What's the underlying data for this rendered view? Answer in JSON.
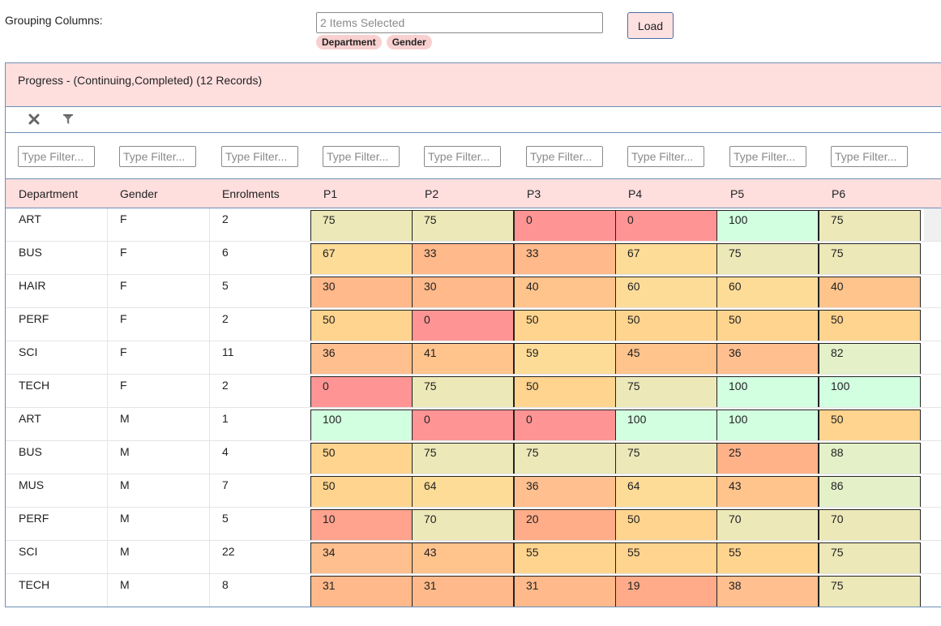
{
  "grouping": {
    "label": "Grouping Columns:",
    "selected_text": "2 Items Selected",
    "chips": [
      "Department",
      "Gender"
    ]
  },
  "load_button": "Load",
  "panel": {
    "title": "Progress - (Continuing,Completed) (12 Records)"
  },
  "toolbar": {
    "clear_icon": "x-icon",
    "filter_icon": "funnel-icon"
  },
  "filter_placeholder": "Type Filter...",
  "columns": [
    "Department",
    "Gender",
    "Enrolments",
    "P1",
    "P2",
    "P3",
    "P4",
    "P5",
    "P6"
  ],
  "rows": [
    {
      "department": "ART",
      "gender": "F",
      "enrolments": "2",
      "p": [
        "75",
        "75",
        "0",
        "0",
        "100",
        "75"
      ]
    },
    {
      "department": "BUS",
      "gender": "F",
      "enrolments": "6",
      "p": [
        "67",
        "33",
        "33",
        "67",
        "75",
        "75"
      ]
    },
    {
      "department": "HAIR",
      "gender": "F",
      "enrolments": "5",
      "p": [
        "30",
        "30",
        "40",
        "60",
        "60",
        "40"
      ]
    },
    {
      "department": "PERF",
      "gender": "F",
      "enrolments": "2",
      "p": [
        "50",
        "0",
        "50",
        "50",
        "50",
        "50"
      ]
    },
    {
      "department": "SCI",
      "gender": "F",
      "enrolments": "11",
      "p": [
        "36",
        "41",
        "59",
        "45",
        "36",
        "82"
      ]
    },
    {
      "department": "TECH",
      "gender": "F",
      "enrolments": "2",
      "p": [
        "0",
        "75",
        "50",
        "75",
        "100",
        "100"
      ]
    },
    {
      "department": "ART",
      "gender": "M",
      "enrolments": "1",
      "p": [
        "100",
        "0",
        "0",
        "100",
        "100",
        "50"
      ]
    },
    {
      "department": "BUS",
      "gender": "M",
      "enrolments": "4",
      "p": [
        "50",
        "75",
        "75",
        "75",
        "25",
        "88"
      ]
    },
    {
      "department": "MUS",
      "gender": "M",
      "enrolments": "7",
      "p": [
        "50",
        "64",
        "36",
        "64",
        "43",
        "86"
      ]
    },
    {
      "department": "PERF",
      "gender": "M",
      "enrolments": "5",
      "p": [
        "10",
        "70",
        "20",
        "50",
        "70",
        "70"
      ]
    },
    {
      "department": "SCI",
      "gender": "M",
      "enrolments": "22",
      "p": [
        "34",
        "43",
        "55",
        "55",
        "55",
        "75"
      ]
    },
    {
      "department": "TECH",
      "gender": "M",
      "enrolments": "8",
      "p": [
        "31",
        "31",
        "31",
        "19",
        "38",
        "75"
      ]
    }
  ],
  "colors": {
    "header_bg": "#ffdede",
    "border_accent": "#6e8fb6",
    "chip_bg": "#f9d0d0",
    "scale": {
      "0": "#ff9494",
      "10": "#ffa28e",
      "19": "#ffaa88",
      "20": "#ffac88",
      "25": "#ffb288",
      "30": "#ffb98a",
      "36": "#ffbf8e",
      "40": "#ffc38c",
      "50": "#ffd48e",
      "60": "#fddc98",
      "75": "#ece8b8",
      "85": "#e4f0c8",
      "100": "#d2ffe0"
    }
  }
}
